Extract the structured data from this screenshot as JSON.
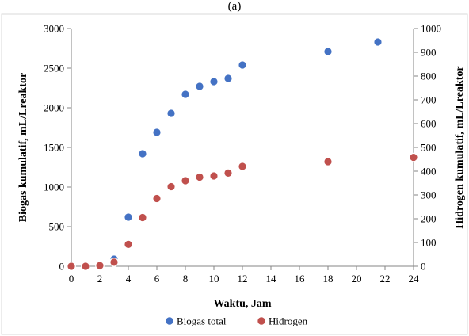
{
  "chart_data": {
    "type": "scatter",
    "panel_label": "(a)",
    "xlabel": "Waktu, Jam",
    "ylabel_left": "Biogas kumulatif, mL/Lreaktor",
    "ylabel_right": "Hidrogen kumulatif, mL/Lreaktor",
    "xlim": [
      0,
      24
    ],
    "ylim_left": [
      0,
      3000
    ],
    "ylim_right": [
      0,
      1000
    ],
    "x_ticks": [
      0,
      2,
      4,
      6,
      8,
      10,
      12,
      14,
      16,
      18,
      20,
      22,
      24
    ],
    "y_left_ticks": [
      0,
      500,
      1000,
      1500,
      2000,
      2500,
      3000
    ],
    "y_right_ticks": [
      0,
      100,
      200,
      300,
      400,
      500,
      600,
      700,
      800,
      900,
      1000
    ],
    "grid": false,
    "legend_position": "bottom",
    "series": [
      {
        "name": "Biogas total",
        "axis": "left",
        "color": "#4472C4",
        "points": [
          [
            0,
            0
          ],
          [
            1,
            0
          ],
          [
            2,
            15
          ],
          [
            3,
            90
          ],
          [
            4,
            620
          ],
          [
            5,
            1420
          ],
          [
            6,
            1690
          ],
          [
            7,
            1930
          ],
          [
            8,
            2170
          ],
          [
            9,
            2270
          ],
          [
            10,
            2330
          ],
          [
            11,
            2370
          ],
          [
            12,
            2540
          ],
          [
            18,
            2710
          ],
          [
            21.5,
            2830
          ]
        ]
      },
      {
        "name": "Hidrogen",
        "axis": "right",
        "color": "#C0504D",
        "points": [
          [
            0,
            0
          ],
          [
            1,
            0
          ],
          [
            2,
            3
          ],
          [
            3,
            17
          ],
          [
            4,
            92
          ],
          [
            5,
            205
          ],
          [
            6,
            285
          ],
          [
            7,
            335
          ],
          [
            8,
            360
          ],
          [
            9,
            375
          ],
          [
            10,
            380
          ],
          [
            11,
            392
          ],
          [
            12,
            420
          ],
          [
            18,
            440
          ],
          [
            24,
            458
          ]
        ]
      }
    ]
  }
}
